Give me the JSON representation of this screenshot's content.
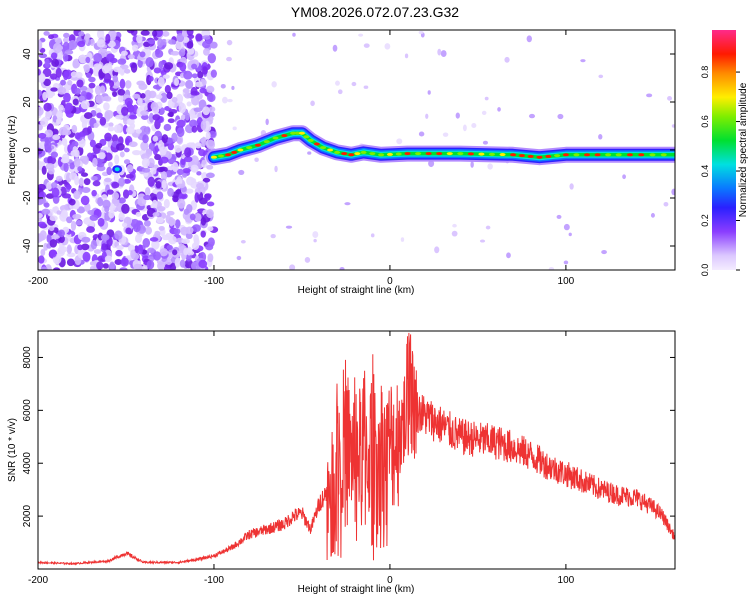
{
  "title": "YM08.2026.072.07.23.G32",
  "chart_data": [
    {
      "type": "heatmap",
      "xlabel": "Height of straight line (km)",
      "ylabel": "Frequency (Hz)",
      "xlim": [
        -200,
        162
      ],
      "ylim": [
        -50,
        50
      ],
      "xticks": [
        -200,
        -100,
        0,
        100
      ],
      "yticks": [
        -40,
        -20,
        0,
        20,
        40
      ],
      "ridge": [
        {
          "x": -100,
          "y": -3
        },
        {
          "x": -92,
          "y": -2
        },
        {
          "x": -85,
          "y": 0
        },
        {
          "x": -75,
          "y": 2
        },
        {
          "x": -65,
          "y": 5
        },
        {
          "x": -55,
          "y": 7
        },
        {
          "x": -50,
          "y": 7
        },
        {
          "x": -45,
          "y": 4
        },
        {
          "x": -38,
          "y": 1
        },
        {
          "x": -30,
          "y": -1
        },
        {
          "x": -22,
          "y": -2
        },
        {
          "x": -15,
          "y": -1
        },
        {
          "x": -5,
          "y": -2
        },
        {
          "x": 10,
          "y": -1.5
        },
        {
          "x": 40,
          "y": -1.5
        },
        {
          "x": 70,
          "y": -2
        },
        {
          "x": 85,
          "y": -3
        },
        {
          "x": 100,
          "y": -2
        },
        {
          "x": 130,
          "y": -2
        },
        {
          "x": 162,
          "y": -2
        }
      ],
      "colorbar": {
        "label": "Normalized spectral amplitude",
        "ticks": [
          "0.0",
          "0.2",
          "0.4",
          "0.6",
          "0.8"
        ],
        "range": [
          0,
          0.97
        ]
      }
    },
    {
      "type": "line",
      "xlabel": "Height of straight line (km)",
      "ylabel": "SNR (10 * v/v)",
      "xlim": [
        -200,
        162
      ],
      "ylim": [
        0,
        9000
      ],
      "xticks": [
        -200,
        -100,
        0,
        100
      ],
      "yticks": [
        2000,
        4000,
        6000,
        8000
      ],
      "color": "#ee3333",
      "x": [
        -200,
        -180,
        -160,
        -150,
        -140,
        -120,
        -110,
        -100,
        -90,
        -80,
        -70,
        -60,
        -55,
        -50,
        -45,
        -40,
        -35,
        -32,
        -30,
        -28,
        -25,
        -22,
        -20,
        -18,
        -15,
        -12,
        -10,
        -8,
        -5,
        -2,
        0,
        3,
        6,
        10,
        12,
        15,
        20,
        25,
        30,
        40,
        50,
        60,
        70,
        80,
        90,
        100,
        110,
        120,
        130,
        140,
        145,
        150,
        155,
        160,
        162
      ],
      "values": [
        250,
        200,
        300,
        600,
        250,
        250,
        350,
        500,
        800,
        1300,
        1500,
        1700,
        2000,
        2100,
        1500,
        2500,
        3000,
        3500,
        5000,
        4500,
        5300,
        4200,
        5000,
        4200,
        5200,
        4000,
        5400,
        4600,
        4800,
        4300,
        4800,
        4800,
        5300,
        6000,
        6500,
        6000,
        5800,
        5600,
        5400,
        5000,
        4900,
        4800,
        4600,
        4300,
        3900,
        3600,
        3300,
        3000,
        2800,
        2700,
        2500,
        2300,
        2000,
        1400,
        1200
      ]
    }
  ]
}
